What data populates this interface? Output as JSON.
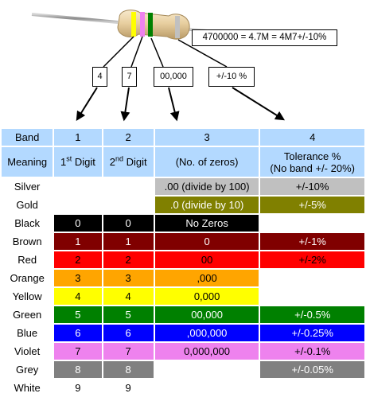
{
  "callouts": {
    "formula": "4700000 = 4.7M = 4M7+/-10%",
    "digit1": "4",
    "digit2": "7",
    "zeros": "00,000",
    "tolerance": "+/-10 %"
  },
  "header": {
    "band": "Band",
    "col1": "1",
    "col2": "2",
    "col3": "3",
    "col4": "4"
  },
  "meaning": {
    "label": "Meaning",
    "digit1_main": "1",
    "digit1_sup": "st",
    "digit1_tail": " Digit",
    "digit2_main": "2",
    "digit2_sup": "nd",
    "digit2_tail": " Digit",
    "zeros": "(No. of zeros)",
    "tol_line1": "Tolerance %",
    "tol_line2": "(No band +/- 20%)"
  },
  "rows": [
    {
      "name": "Silver",
      "d1": "",
      "d2": "",
      "mult": ".00 (divide by 100)",
      "tol": "+/-10%",
      "d1_color": "#ffffff",
      "d2_color": "#ffffff",
      "mult_color": "#c0c0c0",
      "tol_color": "#c0c0c0",
      "text_color": "#000000"
    },
    {
      "name": "Gold",
      "d1": "",
      "d2": "",
      "mult": ".0 (divide by 10)",
      "tol": "+/-5%",
      "d1_color": "#ffffff",
      "d2_color": "#ffffff",
      "mult_color": "#808000",
      "tol_color": "#808000",
      "text_color": "#ffffff"
    },
    {
      "name": "Black",
      "d1": "0",
      "d2": "0",
      "mult": "No Zeros",
      "tol": "",
      "d1_color": "#000000",
      "d2_color": "#000000",
      "mult_color": "#000000",
      "tol_color": "#ffffff",
      "text_color": "#ffffff"
    },
    {
      "name": "Brown",
      "d1": "1",
      "d2": "1",
      "mult": "0",
      "tol": "+/-1%",
      "d1_color": "#800000",
      "d2_color": "#800000",
      "mult_color": "#800000",
      "tol_color": "#800000",
      "text_color": "#ffffff"
    },
    {
      "name": "Red",
      "d1": "2",
      "d2": "2",
      "mult": "00",
      "tol": "+/-2%",
      "d1_color": "#ff0000",
      "d2_color": "#ff0000",
      "mult_color": "#ff0000",
      "tol_color": "#ff0000",
      "text_color": "#000000"
    },
    {
      "name": "Orange",
      "d1": "3",
      "d2": "3",
      "mult": ",000",
      "tol": "",
      "d1_color": "#ffa500",
      "d2_color": "#ffa500",
      "mult_color": "#ffa500",
      "tol_color": "#ffffff",
      "text_color": "#000000"
    },
    {
      "name": "Yellow",
      "d1": "4",
      "d2": "4",
      "mult": "0,000",
      "tol": "",
      "d1_color": "#ffff00",
      "d2_color": "#ffff00",
      "mult_color": "#ffff00",
      "tol_color": "#ffffff",
      "text_color": "#000000"
    },
    {
      "name": "Green",
      "d1": "5",
      "d2": "5",
      "mult": "00,000",
      "tol": "+/-0.5%",
      "d1_color": "#008000",
      "d2_color": "#008000",
      "mult_color": "#008000",
      "tol_color": "#008000",
      "text_color": "#ffffff"
    },
    {
      "name": "Blue",
      "d1": "6",
      "d2": "6",
      "mult": ",000,000",
      "tol": "+/-0.25%",
      "d1_color": "#0000ff",
      "d2_color": "#0000ff",
      "mult_color": "#0000ff",
      "tol_color": "#0000ff",
      "text_color": "#ffffff"
    },
    {
      "name": "Violet",
      "d1": "7",
      "d2": "7",
      "mult": "0,000,000",
      "tol": "+/-0.1%",
      "d1_color": "#ee82ee",
      "d2_color": "#ee82ee",
      "mult_color": "#ee82ee",
      "tol_color": "#ee82ee",
      "text_color": "#000000"
    },
    {
      "name": "Grey",
      "d1": "8",
      "d2": "8",
      "mult": "",
      "tol": "+/-0.05%",
      "d1_color": "#808080",
      "d2_color": "#808080",
      "mult_color": "#ffffff",
      "tol_color": "#808080",
      "text_color": "#ffffff"
    },
    {
      "name": "White",
      "d1": "9",
      "d2": "9",
      "mult": "",
      "tol": "",
      "d1_color": "#ffffff",
      "d2_color": "#ffffff",
      "mult_color": "#ffffff",
      "tol_color": "#ffffff",
      "text_color": "#000000"
    }
  ],
  "colors": {
    "header_bg": "#b3d9ff",
    "resistor_body": "#e8cfa0",
    "band1": "#ffff00",
    "band2": "#ee82ee",
    "band3": "#008000",
    "band4": "#c0c0c0"
  }
}
